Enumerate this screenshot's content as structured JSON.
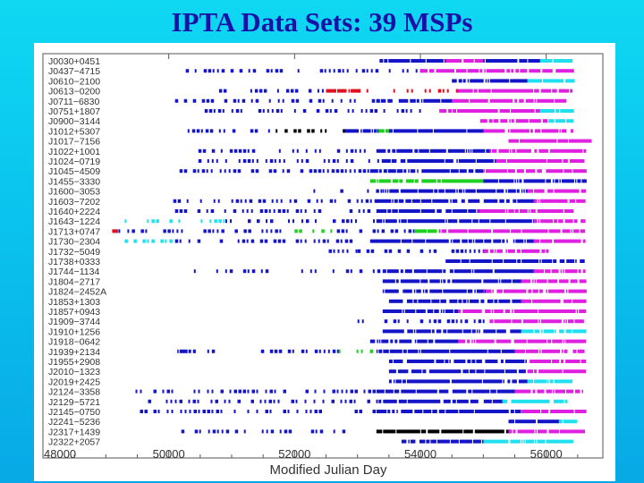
{
  "slide": {
    "title": "IPTA Data Sets: 39 MSPs"
  },
  "chart_data": {
    "type": "scatter",
    "title": "",
    "xlabel": "Modified Julian Day",
    "ylabel": "",
    "xlim": [
      48000,
      56900
    ],
    "xticks": [
      48000,
      50000,
      52000,
      54000,
      56000
    ],
    "grid": false,
    "legend": "none",
    "colors": {
      "blue": "#1515c8",
      "magenta": "#e020e0",
      "red": "#e01020",
      "cyan": "#20e0f0",
      "green": "#20d020",
      "black": "#000000",
      "axes": "#555555",
      "text": "#333333"
    },
    "pulsars": [
      {
        "name": "J0030+0451",
        "segments": [
          [
            53350,
            54400,
            "blue"
          ],
          [
            54400,
            55000,
            "magenta"
          ],
          [
            55000,
            55900,
            "blue"
          ],
          [
            55900,
            56400,
            "cyan"
          ]
        ]
      },
      {
        "name": "J0437−4715",
        "segments": [
          [
            50200,
            53000,
            "blue"
          ],
          [
            53000,
            54000,
            "blue"
          ],
          [
            54000,
            54800,
            "magenta"
          ],
          [
            54800,
            56400,
            "magenta"
          ]
        ]
      },
      {
        "name": "J0610−2100",
        "segments": [
          [
            54500,
            55700,
            "blue"
          ],
          [
            55700,
            56450,
            "cyan"
          ]
        ]
      },
      {
        "name": "J0613−0200",
        "segments": [
          [
            50800,
            52500,
            "blue"
          ],
          [
            52500,
            53000,
            "red"
          ],
          [
            53000,
            54600,
            "red"
          ],
          [
            54600,
            56400,
            "magenta"
          ]
        ]
      },
      {
        "name": "J0711−6830",
        "segments": [
          [
            50100,
            53300,
            "blue"
          ],
          [
            53300,
            54500,
            "blue"
          ],
          [
            54500,
            56300,
            "magenta"
          ]
        ]
      },
      {
        "name": "J0751+1807",
        "segments": [
          [
            50500,
            52700,
            "blue"
          ],
          [
            52700,
            54300,
            "blue"
          ],
          [
            54300,
            55900,
            "magenta"
          ],
          [
            55900,
            56400,
            "cyan"
          ]
        ]
      },
      {
        "name": "J0900−3144",
        "segments": [
          [
            54950,
            56000,
            "magenta"
          ],
          [
            56000,
            56400,
            "cyan"
          ]
        ]
      },
      {
        "name": "J1012+5307",
        "segments": [
          [
            50300,
            51700,
            "blue"
          ],
          [
            51700,
            52800,
            "black"
          ],
          [
            52800,
            53300,
            "blue"
          ],
          [
            53300,
            53500,
            "green"
          ],
          [
            53500,
            55000,
            "blue"
          ],
          [
            55000,
            56400,
            "magenta"
          ]
        ]
      },
      {
        "name": "J1017−7156",
        "segments": [
          [
            55400,
            56700,
            "magenta"
          ]
        ]
      },
      {
        "name": "J1022+1001",
        "segments": [
          [
            50400,
            53300,
            "blue"
          ],
          [
            53300,
            55100,
            "blue"
          ],
          [
            55100,
            56600,
            "magenta"
          ]
        ]
      },
      {
        "name": "J1024−0719",
        "segments": [
          [
            50400,
            53400,
            "blue"
          ],
          [
            53400,
            55200,
            "blue"
          ],
          [
            55200,
            56600,
            "magenta"
          ]
        ]
      },
      {
        "name": "J1045−4509",
        "segments": [
          [
            50100,
            53200,
            "blue"
          ],
          [
            53200,
            55000,
            "blue"
          ],
          [
            55000,
            56600,
            "magenta"
          ]
        ]
      },
      {
        "name": "J1455−3330",
        "segments": [
          [
            53200,
            55000,
            "green"
          ],
          [
            55000,
            56600,
            "blue"
          ]
        ]
      },
      {
        "name": "J1600−3053",
        "segments": [
          [
            52300,
            53400,
            "blue"
          ],
          [
            53400,
            55700,
            "blue"
          ],
          [
            55700,
            56600,
            "magenta"
          ]
        ]
      },
      {
        "name": "J1603−7202",
        "segments": [
          [
            50000,
            53300,
            "blue"
          ],
          [
            53300,
            55800,
            "blue"
          ],
          [
            55800,
            56600,
            "magenta"
          ]
        ]
      },
      {
        "name": "J1640+2224",
        "segments": [
          [
            50100,
            53300,
            "blue"
          ],
          [
            53300,
            54900,
            "blue"
          ],
          [
            54900,
            56400,
            "magenta"
          ]
        ]
      },
      {
        "name": "J1643−1224",
        "segments": [
          [
            49300,
            50900,
            "cyan"
          ],
          [
            50900,
            53300,
            "blue"
          ],
          [
            53300,
            55800,
            "blue"
          ],
          [
            55800,
            56600,
            "magenta"
          ]
        ]
      },
      {
        "name": "J1713+0747",
        "segments": [
          [
            49100,
            49200,
            "red"
          ],
          [
            49200,
            52000,
            "blue"
          ],
          [
            52000,
            52600,
            "green"
          ],
          [
            52600,
            53900,
            "blue"
          ],
          [
            53900,
            54300,
            "green"
          ],
          [
            54300,
            56600,
            "magenta"
          ]
        ]
      },
      {
        "name": "J1730−2304",
        "segments": [
          [
            49300,
            50100,
            "cyan"
          ],
          [
            50100,
            53200,
            "blue"
          ],
          [
            53200,
            55800,
            "blue"
          ],
          [
            55800,
            56600,
            "magenta"
          ]
        ]
      },
      {
        "name": "J1732−5049",
        "segments": [
          [
            52400,
            53000,
            "blue"
          ],
          [
            53000,
            55000,
            "blue"
          ],
          [
            55000,
            56000,
            "magenta"
          ]
        ]
      },
      {
        "name": "J1738+0333",
        "segments": [
          [
            54400,
            56600,
            "blue"
          ]
        ]
      },
      {
        "name": "J1744−1134",
        "segments": [
          [
            50400,
            53400,
            "blue"
          ],
          [
            53400,
            55800,
            "blue"
          ],
          [
            55800,
            56600,
            "magenta"
          ]
        ]
      },
      {
        "name": "J1804−2717",
        "segments": [
          [
            53400,
            55600,
            "blue"
          ],
          [
            55600,
            56600,
            "magenta"
          ]
        ]
      },
      {
        "name": "J1824−2452A",
        "segments": [
          [
            53400,
            55000,
            "blue"
          ],
          [
            55000,
            56600,
            "magenta"
          ]
        ]
      },
      {
        "name": "J1853+1303",
        "segments": [
          [
            53500,
            55600,
            "blue"
          ],
          [
            55600,
            56600,
            "magenta"
          ]
        ]
      },
      {
        "name": "J1857+0943",
        "segments": [
          [
            53400,
            54600,
            "blue"
          ],
          [
            54600,
            56600,
            "magenta"
          ]
        ]
      },
      {
        "name": "J1909−3744",
        "segments": [
          [
            53000,
            55100,
            "blue"
          ],
          [
            55100,
            56600,
            "magenta"
          ]
        ]
      },
      {
        "name": "J1910+1256",
        "segments": [
          [
            53400,
            55600,
            "blue"
          ],
          [
            55600,
            56600,
            "cyan"
          ]
        ]
      },
      {
        "name": "J1918−0642",
        "segments": [
          [
            53200,
            54600,
            "blue"
          ],
          [
            54600,
            56600,
            "magenta"
          ]
        ]
      },
      {
        "name": "J1939+2134",
        "segments": [
          [
            50100,
            50400,
            "blue"
          ],
          [
            50400,
            52700,
            "blue"
          ],
          [
            52700,
            53300,
            "green"
          ],
          [
            53300,
            55500,
            "blue"
          ],
          [
            55500,
            56600,
            "magenta"
          ]
        ]
      },
      {
        "name": "J1955+2908",
        "segments": [
          [
            53500,
            55700,
            "blue"
          ],
          [
            55700,
            56600,
            "magenta"
          ]
        ]
      },
      {
        "name": "J2010−1323",
        "segments": [
          [
            53500,
            55700,
            "blue"
          ],
          [
            55700,
            56600,
            "magenta"
          ]
        ]
      },
      {
        "name": "J2019+2425",
        "segments": [
          [
            53500,
            55700,
            "blue"
          ],
          [
            55700,
            56400,
            "cyan"
          ]
        ]
      },
      {
        "name": "J2124−3358",
        "segments": [
          [
            49400,
            53300,
            "blue"
          ],
          [
            53300,
            55500,
            "blue"
          ],
          [
            55500,
            56600,
            "magenta"
          ]
        ]
      },
      {
        "name": "J2129−5721",
        "segments": [
          [
            49600,
            53300,
            "blue"
          ],
          [
            53300,
            55300,
            "blue"
          ],
          [
            55300,
            56300,
            "cyan"
          ]
        ]
      },
      {
        "name": "J2145−0750",
        "segments": [
          [
            49400,
            53300,
            "blue"
          ],
          [
            53300,
            55600,
            "blue"
          ],
          [
            55600,
            56600,
            "magenta"
          ]
        ]
      },
      {
        "name": "J2241−5236",
        "segments": [
          [
            55400,
            56200,
            "blue"
          ],
          [
            56200,
            56500,
            "cyan"
          ]
        ]
      },
      {
        "name": "J2317+1439",
        "segments": [
          [
            50200,
            52800,
            "blue"
          ],
          [
            53300,
            55400,
            "black"
          ],
          [
            55400,
            56600,
            "magenta"
          ]
        ]
      },
      {
        "name": "J2322+2057",
        "segments": [
          [
            53700,
            55000,
            "blue"
          ],
          [
            55000,
            56400,
            "cyan"
          ]
        ]
      }
    ]
  }
}
